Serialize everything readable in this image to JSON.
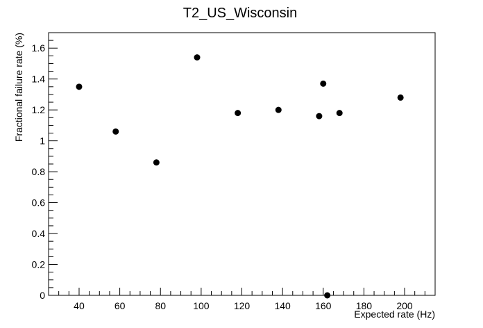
{
  "chart_data": {
    "type": "scatter",
    "title": "T2_US_Wisconsin",
    "xlabel": "Expected rate (Hz)",
    "ylabel": "Fractional failure rate (%)",
    "xlim": [
      25,
      215
    ],
    "ylim": [
      0,
      1.7
    ],
    "x_ticks": [
      40,
      60,
      80,
      100,
      120,
      140,
      160,
      180,
      200
    ],
    "x_tick_labels": [
      "40",
      "60",
      "80",
      "100",
      "120",
      "140",
      "160",
      "180",
      "200"
    ],
    "y_ticks": [
      0,
      0.2,
      0.4,
      0.6,
      0.8,
      1.0,
      1.2,
      1.4,
      1.6
    ],
    "y_tick_labels": [
      "0",
      "0.2",
      "0.4",
      "0.6",
      "0.8",
      "1",
      "1.2",
      "1.4",
      "1.6"
    ],
    "grid": false,
    "legend": "none",
    "marker_color": "#000000",
    "points": [
      {
        "x": 40,
        "y": 1.35
      },
      {
        "x": 58,
        "y": 1.06
      },
      {
        "x": 78,
        "y": 0.86
      },
      {
        "x": 98,
        "y": 1.54
      },
      {
        "x": 118,
        "y": 1.18
      },
      {
        "x": 138,
        "y": 1.2
      },
      {
        "x": 158,
        "y": 1.16
      },
      {
        "x": 160,
        "y": 1.37
      },
      {
        "x": 162,
        "y": 0.0
      },
      {
        "x": 168,
        "y": 1.18
      },
      {
        "x": 198,
        "y": 1.28
      }
    ]
  }
}
